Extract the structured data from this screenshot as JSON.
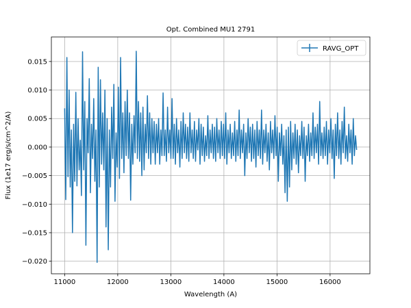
{
  "chart_data": {
    "type": "line",
    "title": "Opt. Combined MU1 2791",
    "xlabel": "Wavelength (A)",
    "ylabel": "Flux (1e17 erg/s/cm^2/A)",
    "xlim": [
      10750,
      16750
    ],
    "ylim": [
      -0.0222,
      0.0193
    ],
    "xticks": [
      11000,
      12000,
      13000,
      14000,
      15000,
      16000
    ],
    "yticks": [
      -0.02,
      -0.015,
      -0.01,
      -0.005,
      0.0,
      0.005,
      0.01,
      0.015
    ],
    "xtick_labels": [
      "11000",
      "12000",
      "13000",
      "14000",
      "15000",
      "16000"
    ],
    "ytick_labels": [
      "−0.020",
      "−0.015",
      "−0.010",
      "−0.005",
      "0.000",
      "0.005",
      "0.010",
      "0.015"
    ],
    "grid": true,
    "legend_position": "top-right",
    "colors": {
      "series": "#1f77b4"
    },
    "series": [
      {
        "name": "RAVG_OPT",
        "x_start": 11000,
        "x_end": 16500,
        "values": [
          0.0068,
          -0.0092,
          0.0157,
          -0.0052,
          0.01,
          -0.007,
          0.003,
          -0.015,
          0.004,
          -0.006,
          0.0096,
          -0.0068,
          0.005,
          -0.004,
          0.0012,
          -0.0085,
          0.0167,
          -0.004,
          0.008,
          -0.0172,
          0.005,
          -0.001,
          0.012,
          -0.008,
          0.004,
          -0.002,
          0.0085,
          -0.006,
          0.003,
          -0.0202,
          0.014,
          -0.007,
          0.0118,
          -0.003,
          0.006,
          -0.004,
          0.01,
          -0.014,
          0.005,
          -0.018,
          0.003,
          -0.007,
          0.007,
          -0.002,
          0.011,
          -0.0095,
          0.0025,
          -0.0035,
          0.0105,
          -0.0055,
          0.0157,
          -0.002,
          0.006,
          -0.0045,
          0.008,
          -0.0015,
          0.01,
          -0.002,
          0.006,
          -0.0093,
          0.004,
          -0.003,
          0.0055,
          -0.001,
          0.0168,
          -0.002,
          0.008,
          -0.0025,
          0.006,
          -0.005,
          0.007,
          -0.004,
          0.004,
          -0.001,
          0.009,
          -0.002,
          0.006,
          -0.003,
          0.005,
          -0.001,
          0.0045,
          -0.003,
          0.004,
          -0.001,
          0.005,
          -0.003,
          0.003,
          -0.0015,
          0.0095,
          -0.0015,
          0.003,
          -0.0025,
          0.007,
          -0.001,
          0.003,
          -0.002,
          0.0085,
          -0.002,
          0.004,
          -0.003,
          0.005,
          -0.001,
          0.003,
          -0.0035,
          0.0045,
          -0.002,
          0.006,
          -0.001,
          0.004,
          -0.002,
          0.0035,
          -0.0025,
          0.006,
          -0.001,
          0.003,
          -0.002,
          0.0045,
          -0.0025,
          0.003,
          -0.0005,
          0.005,
          -0.003,
          0.004,
          -0.0015,
          0.0035,
          -0.0025,
          0.002,
          -0.0015,
          0.0055,
          -0.002,
          0.003,
          -0.001,
          0.004,
          -0.002,
          0.0035,
          -0.0025,
          0.005,
          -0.001,
          0.003,
          -0.002,
          0.0045,
          -0.0015,
          0.004,
          -0.002,
          0.006,
          -0.003,
          0.003,
          -0.001,
          0.004,
          -0.002,
          0.0025,
          -0.0015,
          0.0045,
          -0.0025,
          0.003,
          -0.0015,
          0.0065,
          -0.002,
          0.003,
          -0.001,
          0.004,
          -0.005,
          0.0025,
          -0.002,
          0.005,
          -0.001,
          0.0035,
          -0.0025,
          0.004,
          -0.002,
          0.003,
          -0.0035,
          0.0045,
          -0.0015,
          0.003,
          -0.002,
          0.0065,
          -0.003,
          0.003,
          -0.001,
          0.004,
          -0.0025,
          0.0025,
          -0.004,
          0.0045,
          -0.001,
          0.003,
          -0.002,
          0.0055,
          -0.0015,
          0.0035,
          -0.006,
          0.0025,
          -0.0015,
          0.004,
          -0.003,
          0.002,
          -0.008,
          0.003,
          -0.0095,
          0.0035,
          -0.007,
          0.0045,
          -0.004,
          0.0025,
          -0.002,
          0.004,
          -0.003,
          0.003,
          -0.0045,
          0.002,
          -0.0015,
          0.0045,
          -0.002,
          0.0035,
          -0.006,
          0.002,
          -0.0015,
          0.004,
          -0.0025,
          0.0025,
          -0.0015,
          0.006,
          -0.002,
          0.0035,
          -0.001,
          0.004,
          -0.003,
          0.008,
          -0.0015,
          0.0025,
          -0.002,
          0.0035,
          -0.0015,
          0.0045,
          -0.003,
          0.003,
          -0.001,
          0.005,
          -0.002,
          0.003,
          -0.0055,
          0.004,
          -0.0015,
          0.006,
          -0.002,
          0.003,
          -0.003,
          0.0045,
          -0.001,
          0.007,
          -0.002,
          0.002,
          -0.0025,
          0.004,
          -0.001,
          0.003,
          -0.003,
          0.005,
          -0.0015,
          0.002,
          -0.0005
        ]
      }
    ]
  }
}
